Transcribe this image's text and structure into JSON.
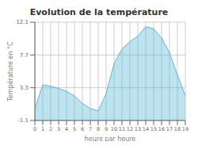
{
  "chart_data": {
    "type": "area",
    "title": "Evolution de la température",
    "xlabel": "heure par heure",
    "ylabel": "Température en °C",
    "x": [
      0,
      1,
      2,
      3,
      4,
      5,
      6,
      7,
      8,
      9,
      10,
      11,
      12,
      13,
      14,
      15,
      16,
      17,
      18,
      19
    ],
    "values": [
      0.5,
      3.7,
      3.5,
      3.2,
      2.8,
      2.2,
      1.2,
      0.5,
      0.2,
      2.5,
      6.5,
      8.5,
      9.5,
      10.2,
      11.5,
      11.2,
      10.0,
      8.0,
      5.0,
      2.2
    ],
    "xlim": [
      0,
      19
    ],
    "xticks": [
      0,
      1,
      2,
      3,
      4,
      5,
      6,
      7,
      8,
      9,
      10,
      11,
      12,
      13,
      14,
      15,
      16,
      17,
      18,
      19
    ],
    "ylim": [
      -1.1,
      12.1
    ],
    "yticks": [
      -1.1,
      3.3,
      7.7,
      12.1
    ],
    "grid": true,
    "color": "#5bb8d4"
  }
}
